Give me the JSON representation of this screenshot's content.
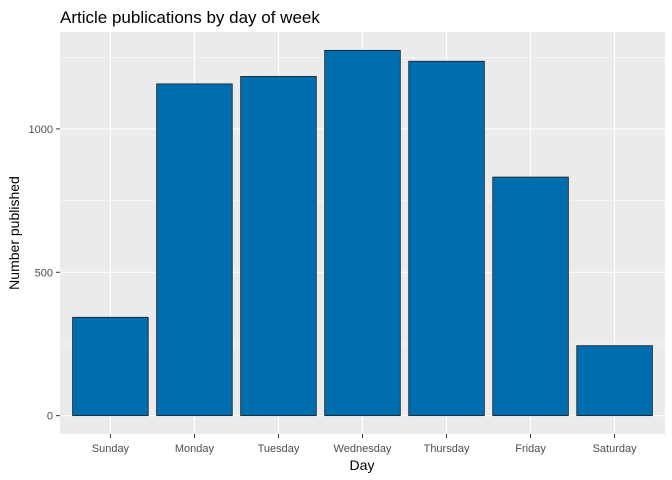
{
  "chart_data": {
    "type": "bar",
    "title": "Article publications by day of week",
    "xlabel": "Day",
    "ylabel": "Number published",
    "categories": [
      "Sunday",
      "Monday",
      "Tuesday",
      "Wednesday",
      "Thursday",
      "Friday",
      "Saturday"
    ],
    "values": [
      343,
      1157,
      1183,
      1274,
      1236,
      832,
      244
    ],
    "ylim": [
      -64,
      1338
    ],
    "yticks": [
      0,
      500,
      1000
    ],
    "grid": true,
    "legend": "none",
    "colors": {
      "bar_fill": "#006eae",
      "bar_stroke": "#1a1a1a",
      "panel_background": "#ebebeb",
      "grid_major": "#ffffff",
      "tick_label": "#4d4d4d"
    }
  }
}
